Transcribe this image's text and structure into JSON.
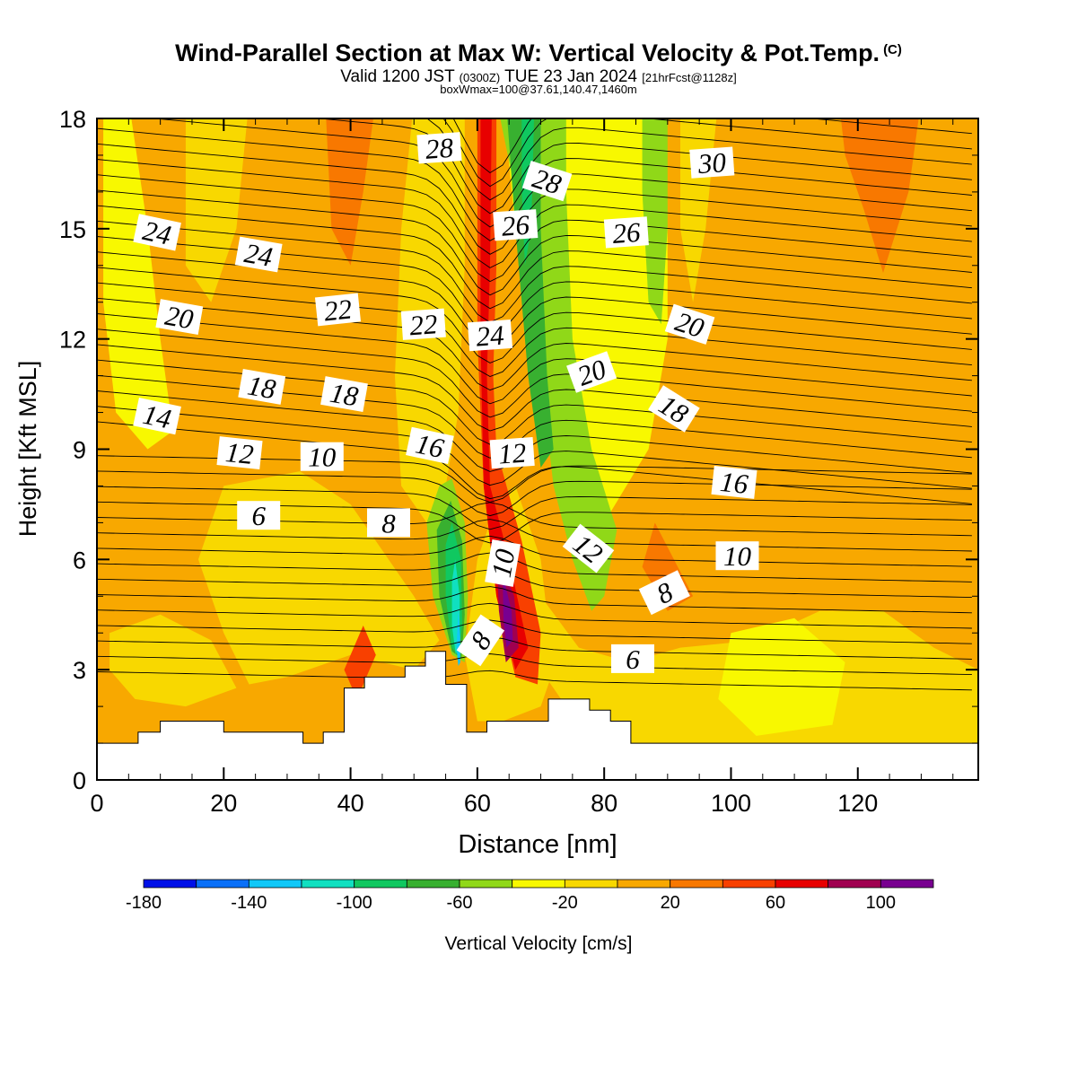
{
  "header": {
    "title": "Wind-Parallel Section at Max W: Vertical Velocity & Pot.Temp.",
    "title_mark": "(C)",
    "valid_a": "Valid 1200 JST ",
    "valid_b": "(0300Z)",
    "valid_c": " TUE 23 Jan 2024 ",
    "valid_d": "[21hrFcst@1128z]",
    "box_line": "boxWmax=100@37.61,140.47,1460m"
  },
  "chart_data": {
    "type": "heatmap",
    "xlabel": "Distance [nm]",
    "ylabel": "Height [Kft MSL]",
    "xlim": [
      0,
      139
    ],
    "ylim": [
      0,
      18
    ],
    "x_ticks": [
      "0",
      "20",
      "40",
      "60",
      "80",
      "100",
      "120"
    ],
    "y_ticks": [
      "0",
      "3",
      "6",
      "9",
      "12",
      "15",
      "18"
    ],
    "colorbar": {
      "label": "Vertical Velocity [cm/s]",
      "colors": [
        "#0010e8",
        "#0a70f8",
        "#10c8f8",
        "#10e0c0",
        "#10c860",
        "#38b030",
        "#90d818",
        "#f8f800",
        "#f8d800",
        "#f8a800",
        "#f87800",
        "#f84000",
        "#e80000",
        "#a00050",
        "#780090"
      ],
      "tick_labels": [
        "-180",
        "-140",
        "-100",
        "-60",
        "-20",
        "20",
        "60",
        "100"
      ]
    },
    "theta_contour_labels": [
      "28",
      "28",
      "30",
      "24",
      "24",
      "26",
      "26",
      "20",
      "22",
      "22",
      "24",
      "20",
      "18",
      "18",
      "20",
      "14",
      "18",
      "12",
      "10",
      "16",
      "12",
      "16",
      "6",
      "8",
      "12",
      "10",
      "10",
      "8",
      "8",
      "6"
    ],
    "terrain_profile": {
      "x_nm": [
        0,
        6.5,
        6.5,
        10,
        10,
        20,
        20,
        32.5,
        32.5,
        35.7,
        35.7,
        39,
        39,
        42.2,
        42.2,
        48.6,
        48.6,
        51.8,
        51.8,
        55,
        55,
        58.3,
        58.3,
        61.5,
        61.5,
        71.2,
        71.2,
        77.7,
        77.7,
        81,
        81,
        84.2,
        84.2,
        139
      ],
      "height_kft": [
        1,
        1,
        1.3,
        1.3,
        1.6,
        1.6,
        1.3,
        1.3,
        1,
        1,
        1.3,
        1.3,
        2.5,
        2.5,
        2.8,
        2.8,
        3.1,
        3.1,
        3.5,
        3.5,
        2.6,
        2.6,
        1.3,
        1.3,
        1.6,
        1.6,
        2.2,
        2.2,
        1.9,
        1.9,
        1.6,
        1.6,
        1,
        1
      ]
    },
    "max_w_cm_s": 100,
    "grid": false
  }
}
